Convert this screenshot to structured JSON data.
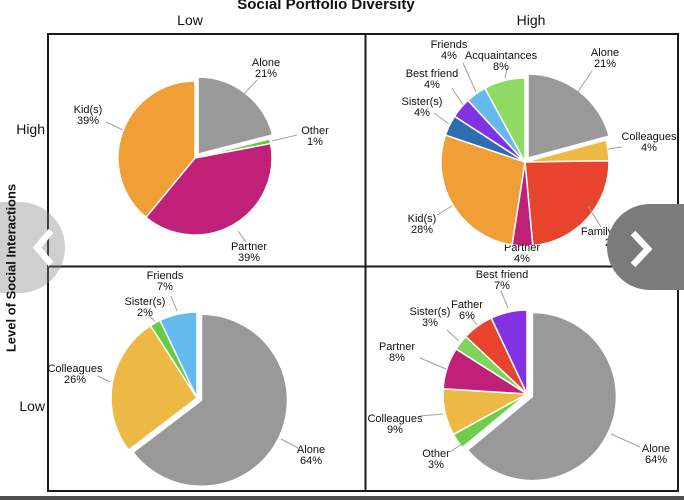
{
  "title": "Social Portfolio Diversity",
  "axes": {
    "x": {
      "title_low": "Low",
      "title_high": "High"
    },
    "y": {
      "label": "Level of Social Interactions",
      "top": "High",
      "bottom": "Low"
    }
  },
  "nav": {
    "prev_icon": "chevron-left-icon",
    "next_icon": "chevron-right-icon",
    "prev_bg_color": "#D4D4D4",
    "next_bg_color": "#7B7B7B"
  },
  "footer_strip_color": "#4F4F4F",
  "chart_data": [
    {
      "type": "pie",
      "quadrant": "top-left",
      "social_portfolio_diversity": "Low",
      "level_of_social_interactions": "High",
      "slices": [
        {
          "label": "Alone",
          "value": 21,
          "color": "#999999"
        },
        {
          "label": "Other",
          "value": 1,
          "color": "#63CC43"
        },
        {
          "label": "Partner",
          "value": 39,
          "color": "#C02077"
        },
        {
          "label": "Kid(s)",
          "value": 39,
          "color": "#F09F36"
        }
      ]
    },
    {
      "type": "pie",
      "quadrant": "top-right",
      "social_portfolio_diversity": "High",
      "level_of_social_interactions": "High",
      "slices": [
        {
          "label": "Alone",
          "value": 21,
          "color": "#999999"
        },
        {
          "label": "Colleagues",
          "value": 4,
          "color": "#EBB944"
        },
        {
          "label": "Family (Other)",
          "value": 24,
          "color": "#E8432C"
        },
        {
          "label": "Partner",
          "value": 4,
          "color": "#C02077"
        },
        {
          "label": "Kid(s)",
          "value": 28,
          "color": "#F09F36"
        },
        {
          "label": "Sister(s)",
          "value": 4,
          "color": "#2E6DAF"
        },
        {
          "label": "Best friend",
          "value": 4,
          "color": "#8133E3"
        },
        {
          "label": "Friends",
          "value": 4,
          "color": "#64B9EE"
        },
        {
          "label": "Acquaintances",
          "value": 8,
          "color": "#8FD964"
        }
      ]
    },
    {
      "type": "pie",
      "quadrant": "bottom-left",
      "social_portfolio_diversity": "Low",
      "level_of_social_interactions": "Low",
      "slices": [
        {
          "label": "Alone",
          "value": 64,
          "color": "#999999"
        },
        {
          "label": "Colleagues",
          "value": 26,
          "color": "#EBB944"
        },
        {
          "label": "Sister(s)",
          "value": 2,
          "color": "#63CC43"
        },
        {
          "label": "Friends",
          "value": 7,
          "color": "#64B9EE"
        }
      ]
    },
    {
      "type": "pie",
      "quadrant": "bottom-right",
      "social_portfolio_diversity": "High",
      "level_of_social_interactions": "Low",
      "slices": [
        {
          "label": "Alone",
          "value": 64,
          "color": "#999999"
        },
        {
          "label": "Other",
          "value": 3,
          "color": "#6FCD4E"
        },
        {
          "label": "Colleagues",
          "value": 9,
          "color": "#EBB944"
        },
        {
          "label": "Partner",
          "value": 8,
          "color": "#C02077"
        },
        {
          "label": "Sister(s)",
          "value": 3,
          "color": "#7FD45B"
        },
        {
          "label": "Father",
          "value": 6,
          "color": "#E8432C"
        },
        {
          "label": "Best friend",
          "value": 7,
          "color": "#8133E3"
        }
      ]
    }
  ]
}
